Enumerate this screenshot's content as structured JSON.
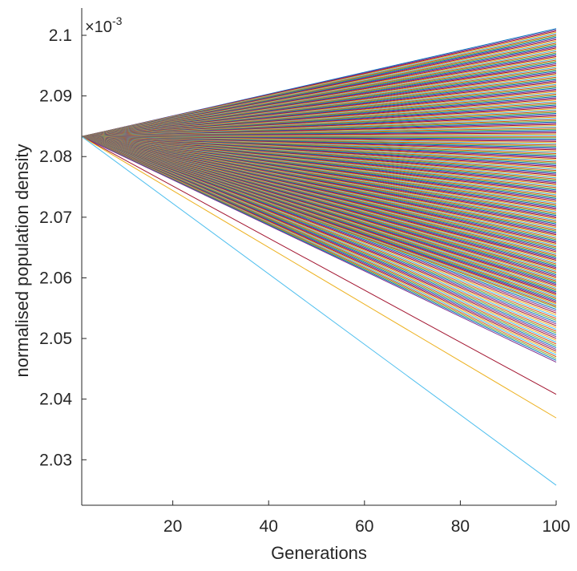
{
  "chart_data": {
    "type": "line",
    "xlabel": "Generations",
    "ylabel": "normalised population density",
    "y_exponent_label": "×10",
    "y_exponent_power": "-3",
    "xlim": [
      1,
      100
    ],
    "ylim": [
      2.0225,
      2.1045
    ],
    "x_ticks": [
      20,
      40,
      60,
      80,
      100
    ],
    "x_tick_labels": [
      "20",
      "40",
      "60",
      "80",
      "100"
    ],
    "y_ticks": [
      2.03,
      2.04,
      2.05,
      2.06,
      2.07,
      2.08,
      2.09,
      2.1
    ],
    "y_tick_labels": [
      "2.03",
      "2.04",
      "2.05",
      "2.06",
      "2.07",
      "2.08",
      "2.09",
      "2.1"
    ],
    "grid": false,
    "legend": "none",
    "start": {
      "x": 1,
      "y": 2.0833
    },
    "series_end_values_at_x100": [
      2.1011,
      2.1009,
      2.1007,
      2.1005,
      2.1003,
      2.1001,
      2.0999,
      2.0997,
      2.0995,
      2.0993,
      2.0991,
      2.0989,
      2.0987,
      2.0985,
      2.0983,
      2.0981,
      2.0979,
      2.0977,
      2.0975,
      2.0973,
      2.0971,
      2.0969,
      2.0967,
      2.0965,
      2.0963,
      2.0961,
      2.0959,
      2.0957,
      2.0955,
      2.0953,
      2.0951,
      2.0949,
      2.0947,
      2.0945,
      2.0943,
      2.0941,
      2.0939,
      2.0937,
      2.0935,
      2.0933,
      2.0931,
      2.0929,
      2.0927,
      2.0925,
      2.0923,
      2.0921,
      2.0919,
      2.0917,
      2.0915,
      2.0913,
      2.0911,
      2.0909,
      2.0907,
      2.0905,
      2.0903,
      2.0901,
      2.0899,
      2.0897,
      2.0895,
      2.0893,
      2.0891,
      2.0889,
      2.0887,
      2.0885,
      2.0883,
      2.0881,
      2.0879,
      2.0877,
      2.0875,
      2.0873,
      2.0871,
      2.0869,
      2.0867,
      2.0865,
      2.0863,
      2.0861,
      2.0859,
      2.0857,
      2.0855,
      2.0853,
      2.0851,
      2.0849,
      2.0847,
      2.0845,
      2.0843,
      2.0841,
      2.0839,
      2.0837,
      2.0835,
      2.0833,
      2.0831,
      2.0829,
      2.0827,
      2.0825,
      2.0823,
      2.0821,
      2.0819,
      2.0817,
      2.0815,
      2.0813,
      2.0811,
      2.0809,
      2.0807,
      2.0805,
      2.0803,
      2.0801,
      2.0799,
      2.0797,
      2.0795,
      2.0793,
      2.0791,
      2.0789,
      2.0787,
      2.0785,
      2.0783,
      2.0781,
      2.0779,
      2.0777,
      2.0775,
      2.0773,
      2.0771,
      2.0769,
      2.0767,
      2.0765,
      2.0763,
      2.0761,
      2.0759,
      2.0757,
      2.0755,
      2.0753,
      2.0751,
      2.0749,
      2.0747,
      2.0745,
      2.0743,
      2.0741,
      2.0739,
      2.0737,
      2.0735,
      2.0733,
      2.0731,
      2.0729,
      2.0727,
      2.0725,
      2.0723,
      2.0721,
      2.0719,
      2.0717,
      2.0715,
      2.0713,
      2.0711,
      2.0709,
      2.0707,
      2.0705,
      2.0703,
      2.0701,
      2.0699,
      2.0697,
      2.0695,
      2.0693,
      2.0691,
      2.0689,
      2.0687,
      2.0685,
      2.0683,
      2.0681,
      2.0679,
      2.0677,
      2.0675,
      2.0673,
      2.0671,
      2.0669,
      2.0667,
      2.0665,
      2.0663,
      2.0661,
      2.0659,
      2.0657,
      2.0655,
      2.0653,
      2.0651,
      2.0649,
      2.0647,
      2.0645,
      2.0643,
      2.0641,
      2.0639,
      2.0637,
      2.0635,
      2.0633,
      2.0631,
      2.0629,
      2.0627,
      2.0625,
      2.0623,
      2.0621,
      2.0619,
      2.0617,
      2.0615,
      2.0613,
      2.0611,
      2.0609,
      2.0607,
      2.0605,
      2.0603,
      2.0601,
      2.0599,
      2.0597,
      2.0595,
      2.0593,
      2.0591,
      2.0589,
      2.0587,
      2.0585,
      2.0583,
      2.0581,
      2.0579,
      2.0577,
      2.0575,
      2.0573,
      2.0571,
      2.0569,
      2.0567,
      2.0565,
      2.0563,
      2.0561,
      2.0559,
      2.0557,
      2.0555,
      2.0553,
      2.0551,
      2.0548,
      2.0545,
      2.0542,
      2.0539,
      2.0536,
      2.0533,
      2.053,
      2.0527,
      2.0524,
      2.0521,
      2.0518,
      2.0515,
      2.0512,
      2.0509,
      2.0506,
      2.0503,
      2.05,
      2.0497,
      2.0494,
      2.0491,
      2.0488,
      2.0485,
      2.0482,
      2.0479,
      2.0476,
      2.0473,
      2.047,
      2.0467,
      2.0464,
      2.0461,
      2.0408,
      2.0369,
      2.0258
    ],
    "series_colors": [
      "#0072BD",
      "#D95319",
      "#EDB120",
      "#7E2F8E",
      "#77AC30",
      "#4DBEEE",
      "#A2142F"
    ]
  }
}
